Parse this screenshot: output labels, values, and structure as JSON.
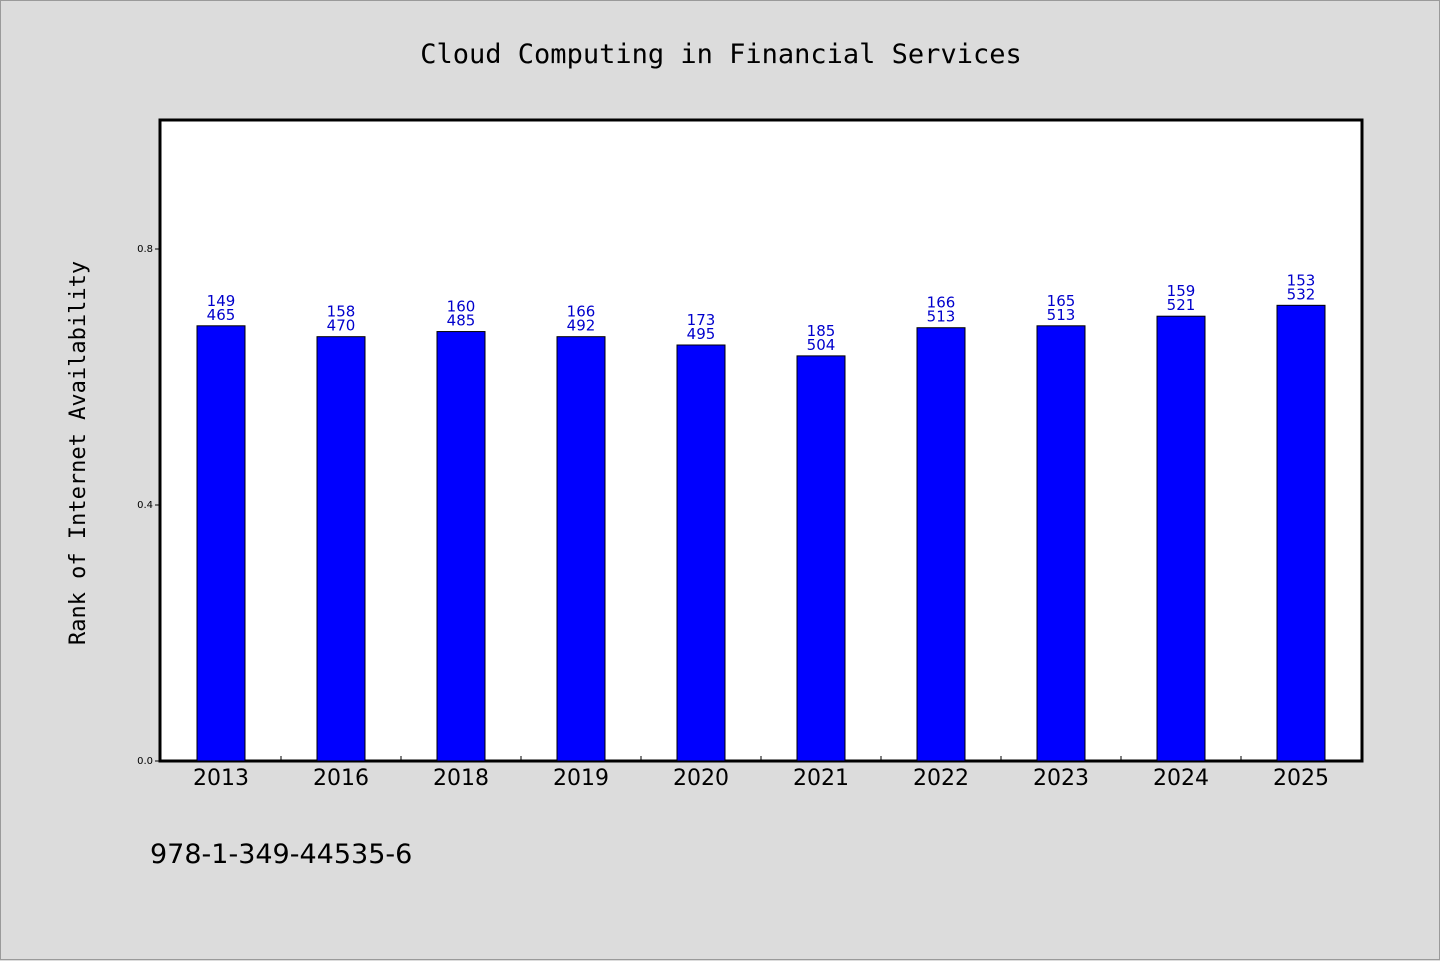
{
  "chart_data": {
    "type": "bar",
    "title": "Cloud Computing in Financial Services",
    "xlabel": "",
    "ylabel": "Rank of Internet Availability",
    "categories": [
      "2013",
      "2016",
      "2018",
      "2019",
      "2020",
      "2021",
      "2022",
      "2023",
      "2024",
      "2025"
    ],
    "values": [
      0.68,
      0.663,
      0.671,
      0.663,
      0.65,
      0.633,
      0.677,
      0.68,
      0.695,
      0.712
    ],
    "data_labels": [
      [
        "149",
        "465"
      ],
      [
        "158",
        "470"
      ],
      [
        "160",
        "485"
      ],
      [
        "166",
        "492"
      ],
      [
        "173",
        "495"
      ],
      [
        "185",
        "504"
      ],
      [
        "166",
        "513"
      ],
      [
        "165",
        "513"
      ],
      [
        "159",
        "521"
      ],
      [
        "153",
        "532"
      ]
    ],
    "yticks": [
      "0.0",
      "0.4",
      "0.8"
    ],
    "ylim": [
      0,
      1.0
    ],
    "grid": false,
    "legend": "none",
    "bar_color": "#0000ff",
    "label_color": "#0000cc"
  },
  "footer": {
    "isbn": "978-1-349-44535-6"
  }
}
